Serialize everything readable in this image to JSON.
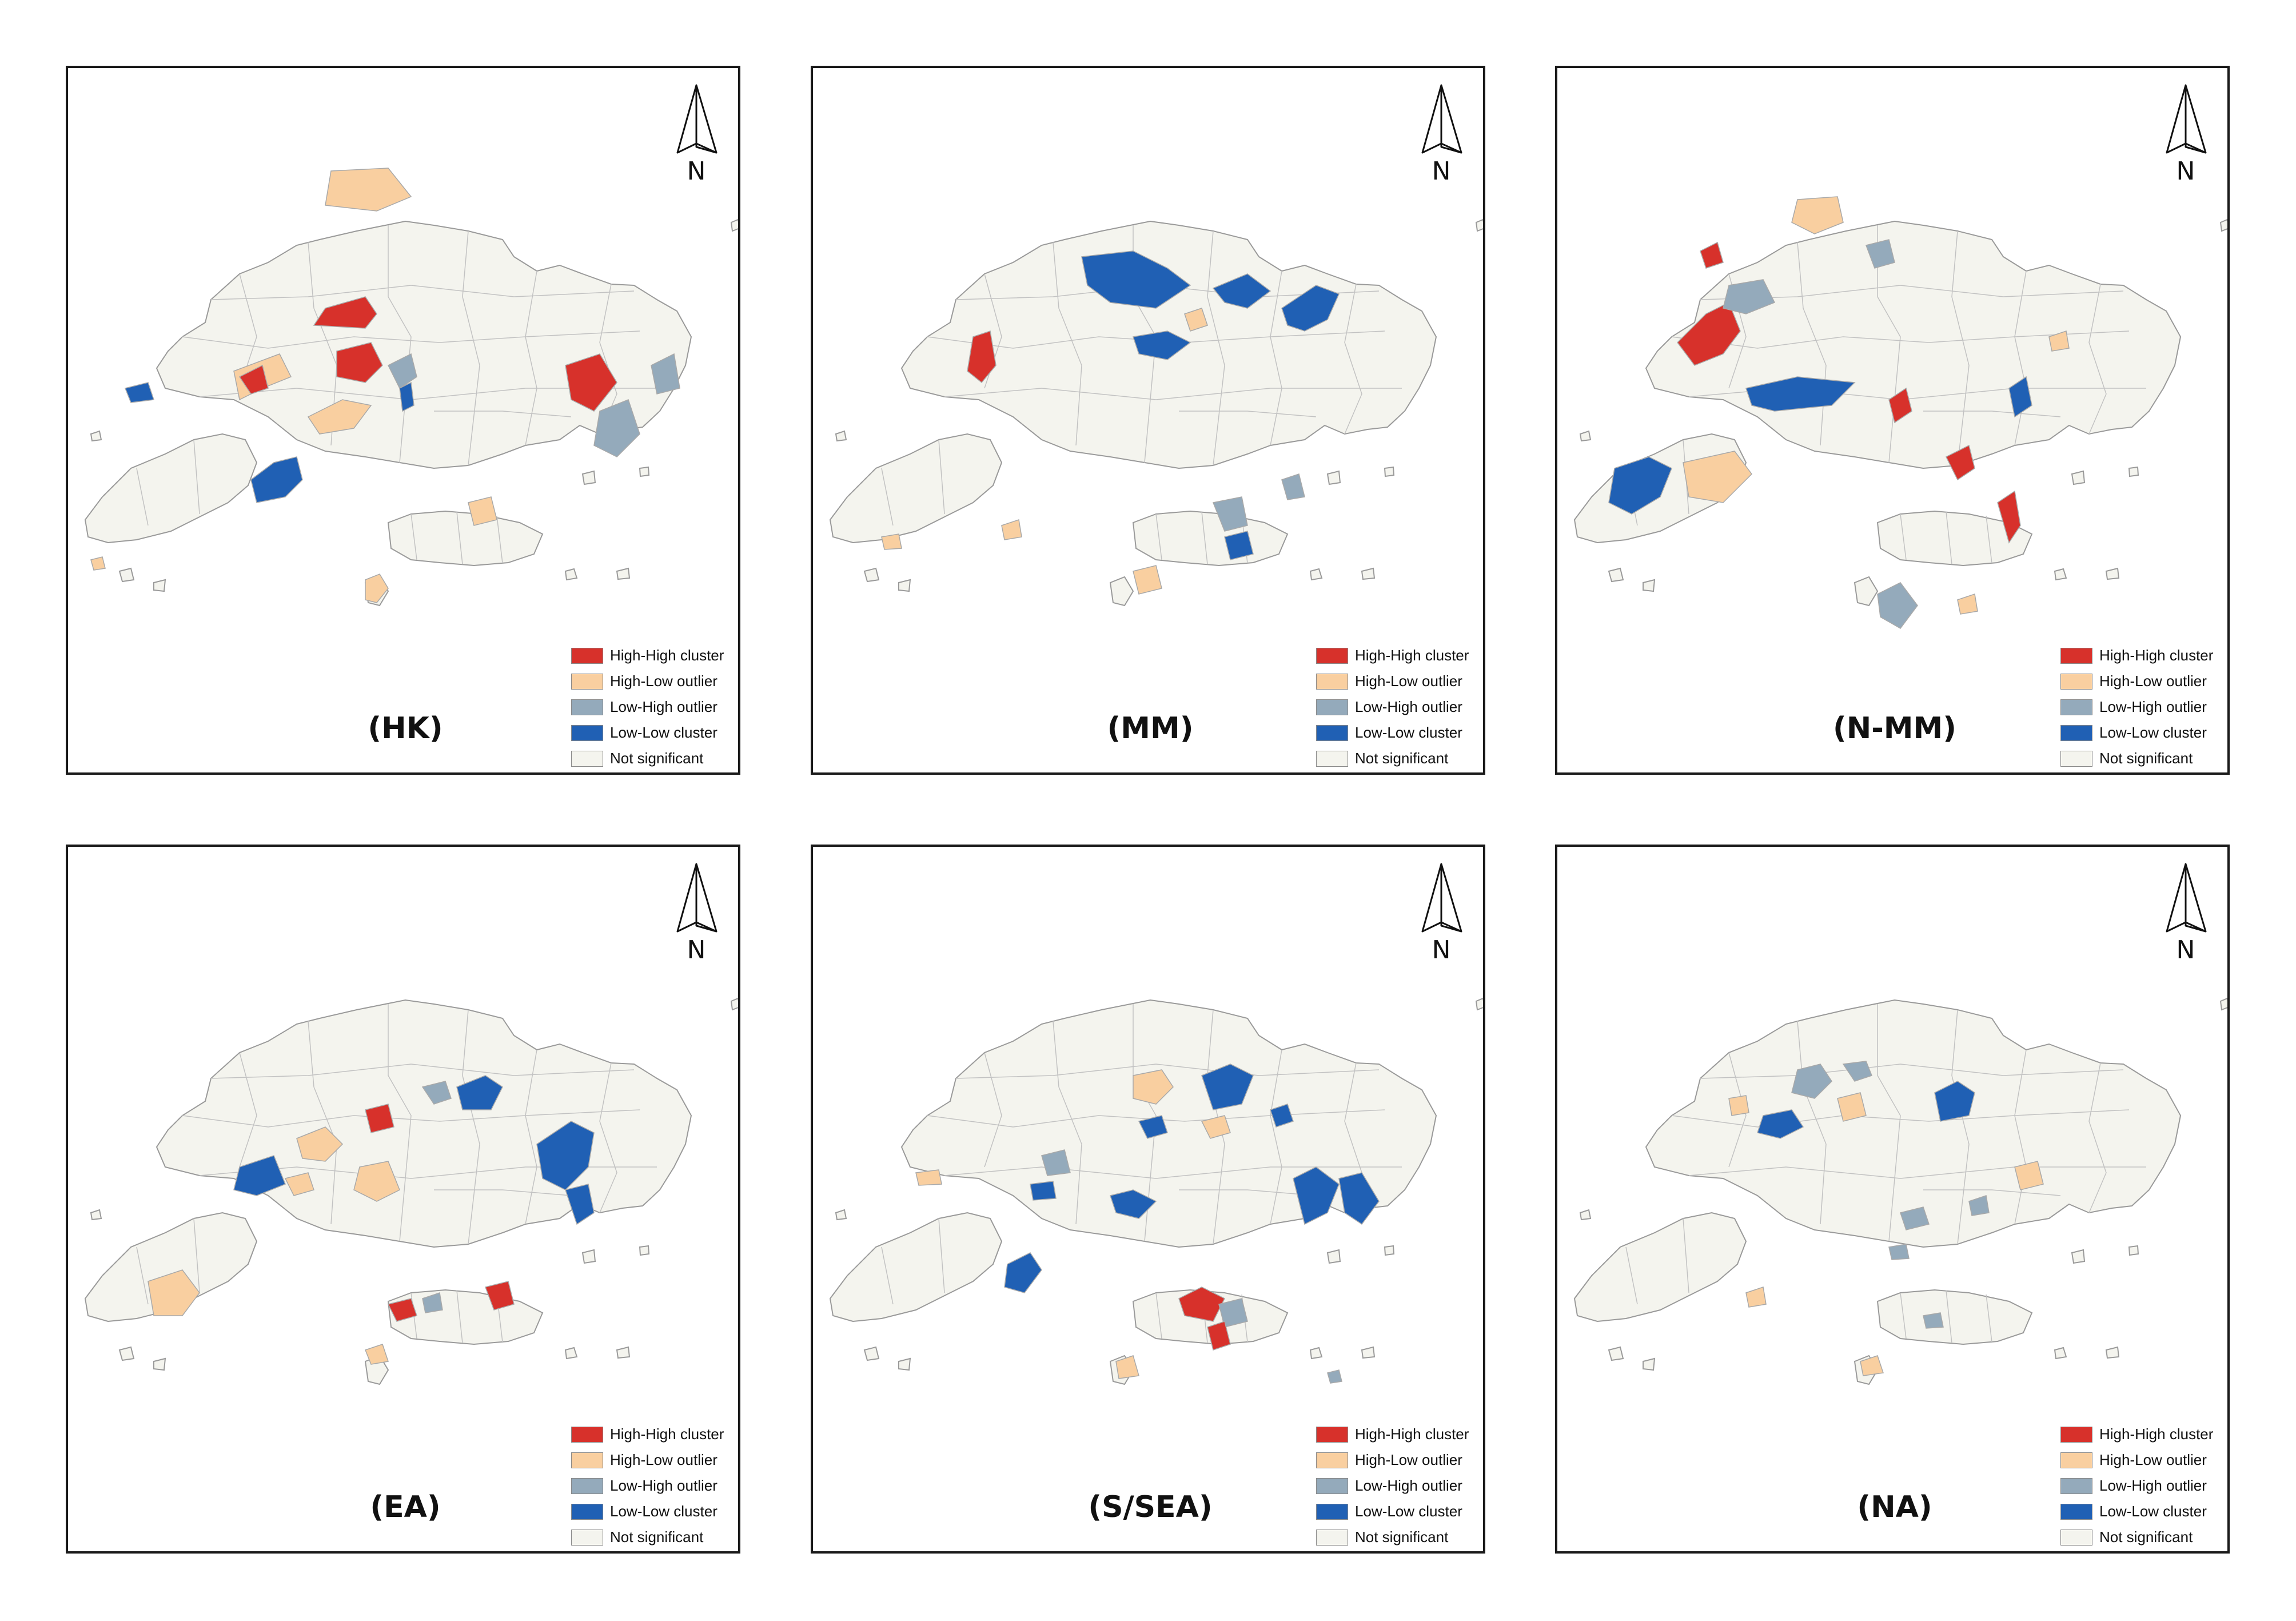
{
  "north_label": "N",
  "legend_items": [
    {
      "label": "High-High cluster",
      "color": "#d7312b"
    },
    {
      "label": "High-Low outlier",
      "color": "#f9cfa0"
    },
    {
      "label": "Low-High outlier",
      "color": "#94aabb"
    },
    {
      "label": "Low-Low cluster",
      "color": "#2060b4"
    },
    {
      "label": "Not significant",
      "color": "#f4f4ee"
    }
  ],
  "panels": [
    {
      "label": "(HK)"
    },
    {
      "label": "(MM)"
    },
    {
      "label": "(N-MM)"
    },
    {
      "label": "(EA)"
    },
    {
      "label": "(S/SEA)"
    },
    {
      "label": "(NA)"
    }
  ]
}
